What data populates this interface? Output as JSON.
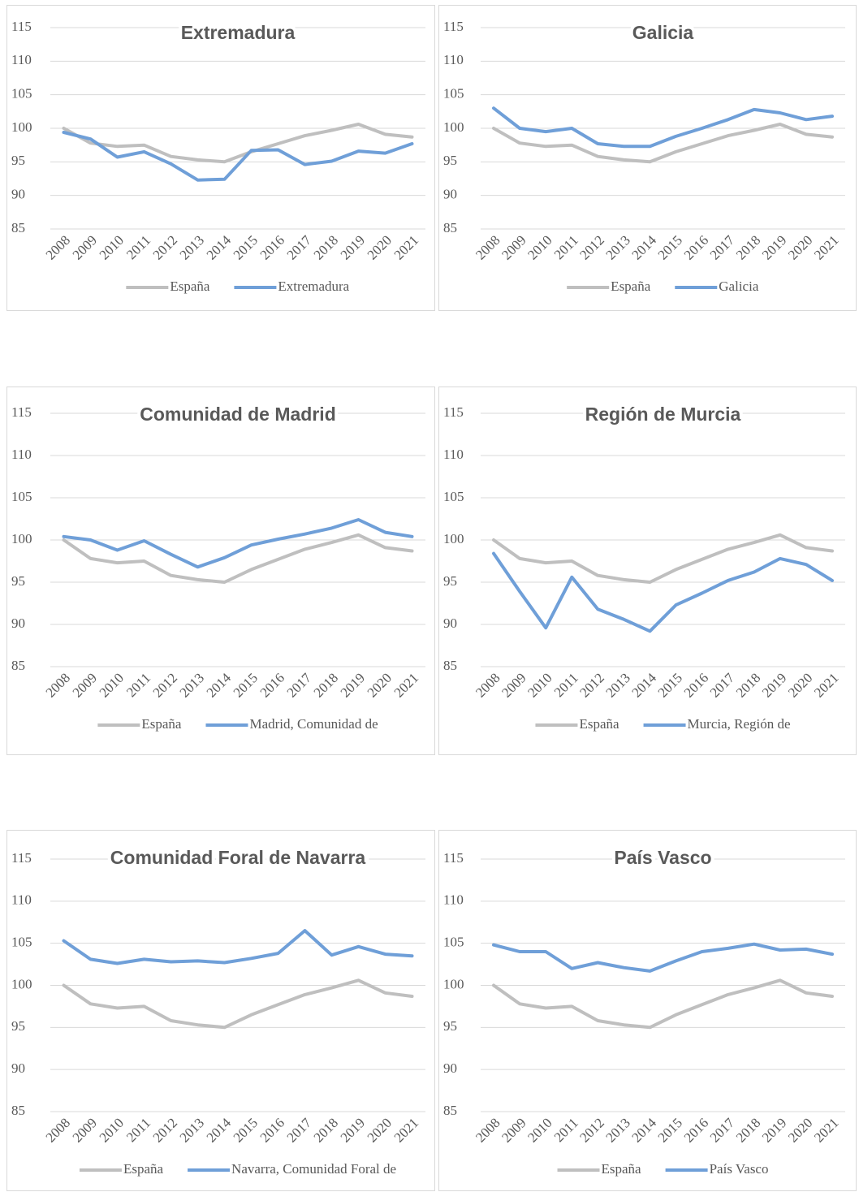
{
  "chart_data": [
    {
      "type": "line",
      "title": "Extremadura",
      "categories": [
        "2008",
        "2009",
        "2010",
        "2011",
        "2012",
        "2013",
        "2014",
        "2015",
        "2016",
        "2017",
        "2018",
        "2019",
        "2020",
        "2021"
      ],
      "series": [
        {
          "name": "España",
          "color": "#bfbfbf",
          "values": [
            100,
            97.8,
            97.3,
            97.5,
            95.8,
            95.3,
            95.0,
            96.5,
            97.7,
            98.9,
            99.7,
            100.6,
            99.1,
            98.7
          ]
        },
        {
          "name": "Extremadura",
          "color": "#6f9fd8",
          "values": [
            99.4,
            98.4,
            95.7,
            96.5,
            94.7,
            92.3,
            92.4,
            96.7,
            96.8,
            94.6,
            95.1,
            96.6,
            96.3,
            97.7
          ]
        }
      ],
      "ylim": [
        85,
        115
      ],
      "yticks": [
        85,
        90,
        95,
        100,
        105,
        110,
        115
      ],
      "grid": true
    },
    {
      "type": "line",
      "title": "Galicia",
      "categories": [
        "2008",
        "2009",
        "2010",
        "2011",
        "2012",
        "2013",
        "2014",
        "2015",
        "2016",
        "2017",
        "2018",
        "2019",
        "2020",
        "2021"
      ],
      "series": [
        {
          "name": "España",
          "color": "#bfbfbf",
          "values": [
            100,
            97.8,
            97.3,
            97.5,
            95.8,
            95.3,
            95.0,
            96.5,
            97.7,
            98.9,
            99.7,
            100.6,
            99.1,
            98.7
          ]
        },
        {
          "name": "Galicia",
          "color": "#6f9fd8",
          "values": [
            103.0,
            100.0,
            99.5,
            100.0,
            97.7,
            97.3,
            97.3,
            98.8,
            100.0,
            101.3,
            102.8,
            102.3,
            101.3,
            101.8
          ]
        }
      ],
      "ylim": [
        85,
        115
      ],
      "yticks": [
        85,
        90,
        95,
        100,
        105,
        110,
        115
      ],
      "grid": true
    },
    {
      "type": "line",
      "title": "Comunidad de Madrid",
      "categories": [
        "2008",
        "2009",
        "2010",
        "2011",
        "2012",
        "2013",
        "2014",
        "2015",
        "2016",
        "2017",
        "2018",
        "2019",
        "2020",
        "2021"
      ],
      "series": [
        {
          "name": "España",
          "color": "#bfbfbf",
          "values": [
            100,
            97.8,
            97.3,
            97.5,
            95.8,
            95.3,
            95.0,
            96.5,
            97.7,
            98.9,
            99.7,
            100.6,
            99.1,
            98.7
          ]
        },
        {
          "name": "Madrid, Comunidad de",
          "color": "#6f9fd8",
          "values": [
            100.4,
            100.0,
            98.8,
            99.9,
            98.3,
            96.8,
            97.9,
            99.4,
            100.1,
            100.7,
            101.4,
            102.4,
            100.9,
            100.4
          ]
        }
      ],
      "ylim": [
        85,
        115
      ],
      "yticks": [
        85,
        90,
        95,
        100,
        105,
        110,
        115
      ],
      "grid": true
    },
    {
      "type": "line",
      "title": "Región de Murcia",
      "categories": [
        "2008",
        "2009",
        "2010",
        "2011",
        "2012",
        "2013",
        "2014",
        "2015",
        "2016",
        "2017",
        "2018",
        "2019",
        "2020",
        "2021"
      ],
      "series": [
        {
          "name": "España",
          "color": "#bfbfbf",
          "values": [
            100,
            97.8,
            97.3,
            97.5,
            95.8,
            95.3,
            95.0,
            96.5,
            97.7,
            98.9,
            99.7,
            100.6,
            99.1,
            98.7
          ]
        },
        {
          "name": "Murcia, Región de",
          "color": "#6f9fd8",
          "values": [
            98.4,
            93.9,
            89.6,
            95.6,
            91.8,
            90.6,
            89.2,
            92.3,
            93.7,
            95.2,
            96.2,
            97.8,
            97.1,
            95.2
          ]
        }
      ],
      "ylim": [
        85,
        115
      ],
      "yticks": [
        85,
        90,
        95,
        100,
        105,
        110,
        115
      ],
      "grid": true
    },
    {
      "type": "line",
      "title": "Comunidad Foral de Navarra",
      "categories": [
        "2008",
        "2009",
        "2010",
        "2011",
        "2012",
        "2013",
        "2014",
        "2015",
        "2016",
        "2017",
        "2018",
        "2019",
        "2020",
        "2021"
      ],
      "series": [
        {
          "name": "España",
          "color": "#bfbfbf",
          "values": [
            100,
            97.8,
            97.3,
            97.5,
            95.8,
            95.3,
            95.0,
            96.5,
            97.7,
            98.9,
            99.7,
            100.6,
            99.1,
            98.7
          ]
        },
        {
          "name": "Navarra, Comunidad Foral de",
          "color": "#6f9fd8",
          "values": [
            105.3,
            103.1,
            102.6,
            103.1,
            102.8,
            102.9,
            102.7,
            103.2,
            103.8,
            106.5,
            103.6,
            104.6,
            103.7,
            103.5
          ]
        }
      ],
      "ylim": [
        85,
        115
      ],
      "yticks": [
        85,
        90,
        95,
        100,
        105,
        110,
        115
      ],
      "grid": true
    },
    {
      "type": "line",
      "title": "País Vasco",
      "categories": [
        "2008",
        "2009",
        "2010",
        "2011",
        "2012",
        "2013",
        "2014",
        "2015",
        "2016",
        "2017",
        "2018",
        "2019",
        "2020",
        "2021"
      ],
      "series": [
        {
          "name": "España",
          "color": "#bfbfbf",
          "values": [
            100,
            97.8,
            97.3,
            97.5,
            95.8,
            95.3,
            95.0,
            96.5,
            97.7,
            98.9,
            99.7,
            100.6,
            99.1,
            98.7
          ]
        },
        {
          "name": "País Vasco",
          "color": "#6f9fd8",
          "values": [
            104.8,
            104.0,
            104.0,
            102.0,
            102.7,
            102.1,
            101.7,
            102.9,
            104.0,
            104.4,
            104.9,
            104.2,
            104.3,
            103.7
          ]
        }
      ],
      "ylim": [
        85,
        115
      ],
      "yticks": [
        85,
        90,
        95,
        100,
        105,
        110,
        115
      ],
      "grid": true
    }
  ]
}
